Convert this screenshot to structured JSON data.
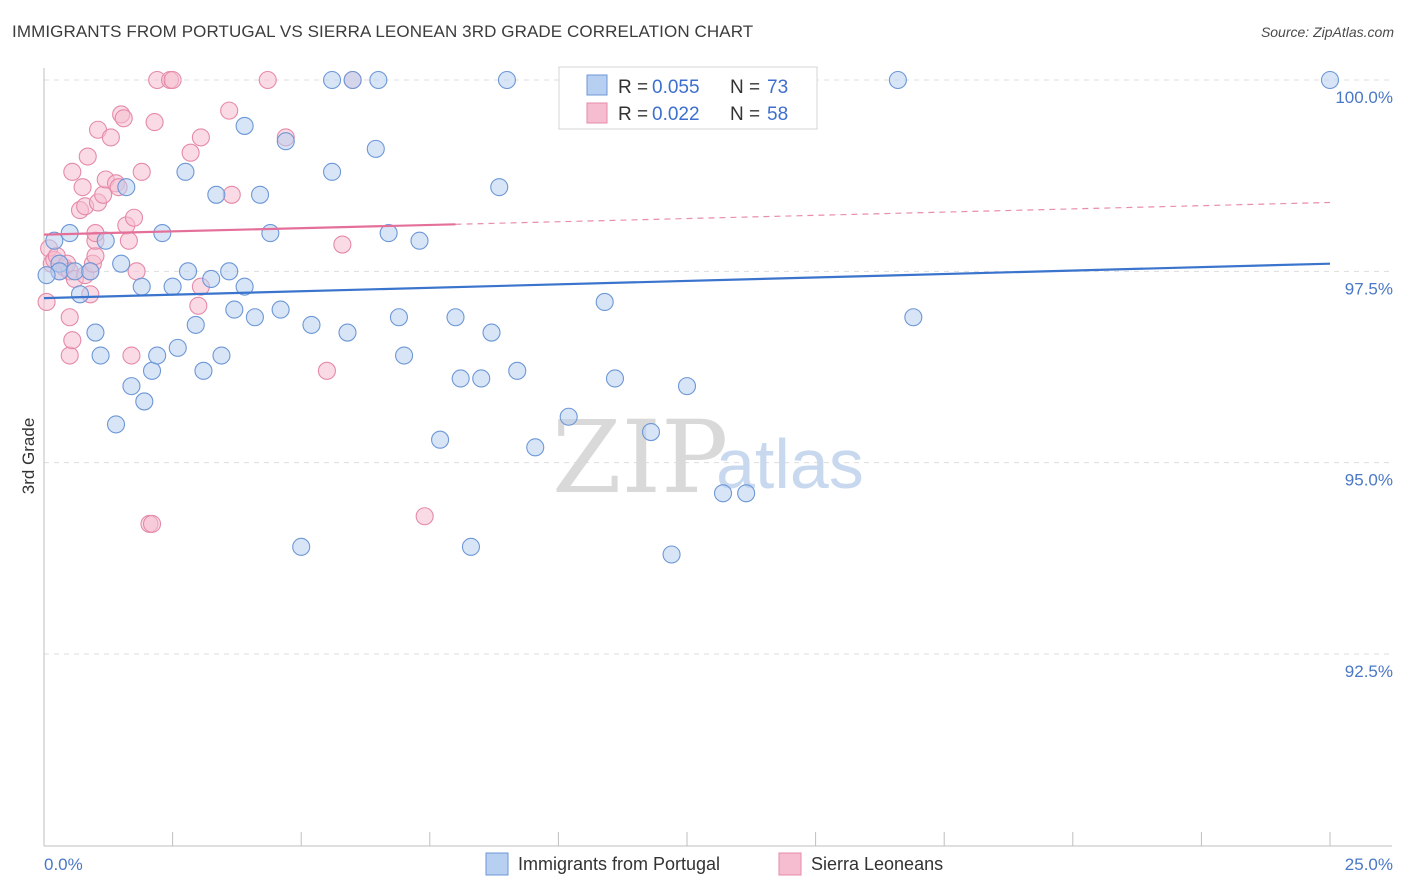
{
  "title": "IMMIGRANTS FROM PORTUGAL VS SIERRA LEONEAN 3RD GRADE CORRELATION CHART",
  "source": "Source: ZipAtlas.com",
  "watermark": {
    "zip": "ZIP",
    "atlas": "atlas"
  },
  "colors": {
    "blue_fill": "#b7cff1",
    "blue_stroke": "#6d97d6",
    "blue_line": "#3a74cc",
    "pink_fill": "#f6bdd0",
    "pink_stroke": "#e58aa9",
    "pink_line": "#e4709a",
    "axis_text": "#4a78c6",
    "grid": "#dddddd"
  },
  "stats": [
    {
      "r_label": "R =",
      "r_value": "0.055",
      "n_label": "N =",
      "n_value": "73"
    },
    {
      "r_label": "R =",
      "r_value": "0.022",
      "n_label": "N =",
      "n_value": "58"
    }
  ],
  "chart_data": {
    "type": "scatter",
    "title": "IMMIGRANTS FROM PORTUGAL VS SIERRA LEONEAN 3RD GRADE CORRELATION CHART",
    "xlabel": "",
    "ylabel": "3rd Grade",
    "xlim": [
      0,
      25
    ],
    "ylim": [
      90.0,
      100.25
    ],
    "x_tick_labels": [
      "0.0%",
      "25.0%"
    ],
    "y_ticks": [
      92.5,
      95.0,
      97.5,
      100.0
    ],
    "y_tick_labels": [
      "92.5%",
      "95.0%",
      "97.5%",
      "100.0%"
    ],
    "grid": true,
    "legend_position": "bottom-center",
    "series": [
      {
        "name": "Immigrants from Portugal",
        "color": "#6d97d6",
        "trend": {
          "x": [
            0.0,
            25.0
          ],
          "y": [
            97.15,
            97.6
          ],
          "solid_until": 25.0
        },
        "points": [
          [
            0.2,
            97.9
          ],
          [
            0.3,
            97.6
          ],
          [
            0.5,
            98.0
          ],
          [
            0.3,
            97.5
          ],
          [
            0.6,
            97.5
          ],
          [
            0.7,
            97.2
          ],
          [
            0.9,
            97.5
          ],
          [
            1.0,
            96.7
          ],
          [
            1.1,
            96.4
          ],
          [
            1.2,
            97.9
          ],
          [
            1.5,
            97.6
          ],
          [
            1.6,
            98.6
          ],
          [
            1.4,
            95.5
          ],
          [
            1.7,
            96.0
          ],
          [
            1.9,
            97.3
          ],
          [
            1.95,
            95.8
          ],
          [
            2.1,
            96.2
          ],
          [
            2.2,
            96.4
          ],
          [
            2.3,
            98.0
          ],
          [
            2.5,
            97.3
          ],
          [
            2.6,
            96.5
          ],
          [
            2.75,
            98.8
          ],
          [
            2.8,
            97.5
          ],
          [
            2.95,
            96.8
          ],
          [
            3.1,
            96.2
          ],
          [
            3.25,
            97.4
          ],
          [
            3.35,
            98.5
          ],
          [
            3.45,
            96.4
          ],
          [
            3.6,
            97.5
          ],
          [
            3.7,
            97.0
          ],
          [
            3.9,
            97.3
          ],
          [
            3.9,
            99.4
          ],
          [
            4.2,
            98.5
          ],
          [
            4.1,
            96.9
          ],
          [
            4.4,
            98.0
          ],
          [
            4.7,
            99.2
          ],
          [
            4.6,
            97.0
          ],
          [
            5.0,
            93.9
          ],
          [
            5.2,
            96.8
          ],
          [
            5.6,
            98.8
          ],
          [
            5.6,
            100.0
          ],
          [
            6.0,
            100.0
          ],
          [
            5.9,
            96.7
          ],
          [
            6.5,
            100.0
          ],
          [
            6.45,
            99.1
          ],
          [
            6.7,
            98.0
          ],
          [
            6.9,
            96.9
          ],
          [
            7.0,
            96.4
          ],
          [
            7.3,
            97.9
          ],
          [
            7.7,
            95.3
          ],
          [
            8.0,
            96.9
          ],
          [
            8.1,
            96.1
          ],
          [
            8.3,
            93.9
          ],
          [
            8.5,
            96.1
          ],
          [
            8.7,
            96.7
          ],
          [
            8.85,
            98.6
          ],
          [
            9.0,
            100.0
          ],
          [
            9.2,
            96.2
          ],
          [
            9.55,
            95.2
          ],
          [
            10.2,
            95.6
          ],
          [
            10.9,
            97.1
          ],
          [
            11.1,
            96.1
          ],
          [
            11.8,
            95.4
          ],
          [
            12.2,
            93.8
          ],
          [
            12.5,
            96.0
          ],
          [
            13.2,
            94.6
          ],
          [
            13.65,
            94.6
          ],
          [
            13.8,
            100.0
          ],
          [
            14.1,
            100.0
          ],
          [
            16.6,
            100.0
          ],
          [
            16.9,
            96.9
          ],
          [
            25.0,
            100.0
          ],
          [
            0.05,
            97.45
          ]
        ]
      },
      {
        "name": "Sierra Leoneans",
        "color": "#e58aa9",
        "trend": {
          "x": [
            0.0,
            25.0
          ],
          "y": [
            97.98,
            98.4
          ],
          "solid_until": 8.0
        },
        "points": [
          [
            0.05,
            97.1
          ],
          [
            0.1,
            97.8
          ],
          [
            0.15,
            97.6
          ],
          [
            0.2,
            97.65
          ],
          [
            0.25,
            97.7
          ],
          [
            0.3,
            97.5
          ],
          [
            0.4,
            97.55
          ],
          [
            0.45,
            97.6
          ],
          [
            0.5,
            97.5
          ],
          [
            0.5,
            96.9
          ],
          [
            0.5,
            96.4
          ],
          [
            0.55,
            96.6
          ],
          [
            0.55,
            98.8
          ],
          [
            0.6,
            97.4
          ],
          [
            0.7,
            98.3
          ],
          [
            0.75,
            98.6
          ],
          [
            0.8,
            98.35
          ],
          [
            0.8,
            97.45
          ],
          [
            0.85,
            99.0
          ],
          [
            0.9,
            97.2
          ],
          [
            0.9,
            97.5
          ],
          [
            0.95,
            97.6
          ],
          [
            1.0,
            97.7
          ],
          [
            1.0,
            97.9
          ],
          [
            1.0,
            98.0
          ],
          [
            1.05,
            98.4
          ],
          [
            1.05,
            99.35
          ],
          [
            1.15,
            98.5
          ],
          [
            1.2,
            98.7
          ],
          [
            1.3,
            99.25
          ],
          [
            1.4,
            98.65
          ],
          [
            1.45,
            98.6
          ],
          [
            1.5,
            99.55
          ],
          [
            1.55,
            99.5
          ],
          [
            1.6,
            98.1
          ],
          [
            1.65,
            97.9
          ],
          [
            1.7,
            96.4
          ],
          [
            1.75,
            98.2
          ],
          [
            1.8,
            97.5
          ],
          [
            1.9,
            98.8
          ],
          [
            2.05,
            94.2
          ],
          [
            2.1,
            94.2
          ],
          [
            2.15,
            99.45
          ],
          [
            2.2,
            100.0
          ],
          [
            2.45,
            100.0
          ],
          [
            2.5,
            100.0
          ],
          [
            2.85,
            99.05
          ],
          [
            3.0,
            97.05
          ],
          [
            3.05,
            97.3
          ],
          [
            3.05,
            99.25
          ],
          [
            3.6,
            99.6
          ],
          [
            3.65,
            98.5
          ],
          [
            4.35,
            100.0
          ],
          [
            4.7,
            99.25
          ],
          [
            5.5,
            96.2
          ],
          [
            5.8,
            97.85
          ],
          [
            6.0,
            100.0
          ],
          [
            7.4,
            94.3
          ]
        ]
      }
    ]
  },
  "legend": [
    {
      "label": "Immigrants from Portugal",
      "series": 0
    },
    {
      "label": "Sierra Leoneans",
      "series": 1
    }
  ]
}
